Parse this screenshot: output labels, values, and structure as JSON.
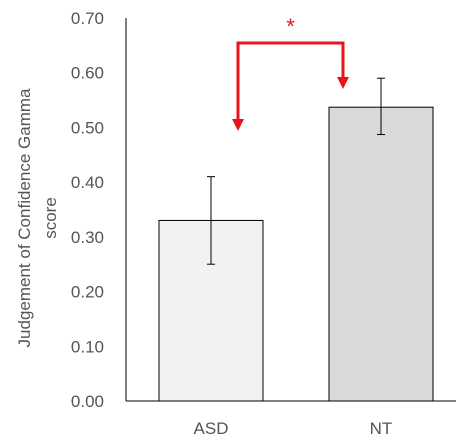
{
  "chart_data": {
    "type": "bar",
    "title": "",
    "xlabel": "",
    "ylabel_lines": [
      "Judgement of Confidence Gamma",
      "score"
    ],
    "categories": [
      "ASD",
      "NT"
    ],
    "values": [
      0.33,
      0.537
    ],
    "error_low": [
      0.25,
      0.487
    ],
    "error_high": [
      0.41,
      0.59
    ],
    "ylim": [
      0,
      0.7
    ],
    "yticks": [
      "0.00",
      "0.10",
      "0.20",
      "0.30",
      "0.40",
      "0.50",
      "0.60",
      "0.70"
    ],
    "bar_colors": [
      "#f2f2f2",
      "#d9d9d9"
    ],
    "grid": false,
    "legend": "none",
    "annotation": {
      "label": "*",
      "between": [
        "ASD",
        "NT"
      ],
      "color": "#e8141c"
    }
  }
}
